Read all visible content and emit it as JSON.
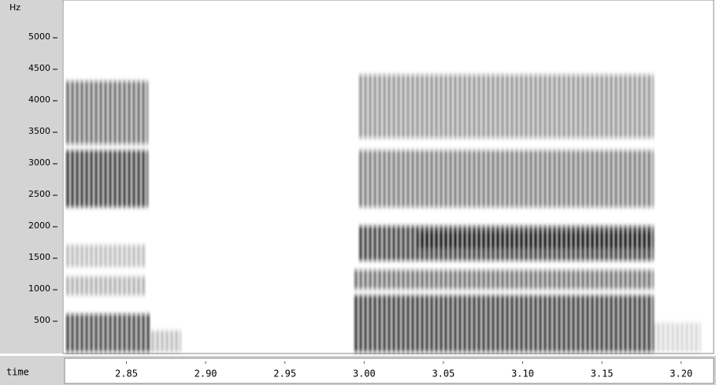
{
  "chart_data": {
    "type": "spectrogram",
    "x_label": "time",
    "y_label": "Hz",
    "xlim": [
      2.811,
      3.22
    ],
    "ylim": [
      0,
      5550
    ],
    "xticks": [
      2.85,
      {
        "value": 2.9,
        "label": "2.90"
      },
      2.95,
      {
        "value": 3,
        "label": "3.00"
      },
      3.05,
      {
        "value": 3.1,
        "label": "3.10"
      },
      3.15,
      {
        "value": 3.2,
        "label": "3.20"
      }
    ],
    "yticks": [
      500,
      1000,
      1500,
      2000,
      2500,
      3000,
      3500,
      4000,
      4500,
      5000
    ]
  }
}
